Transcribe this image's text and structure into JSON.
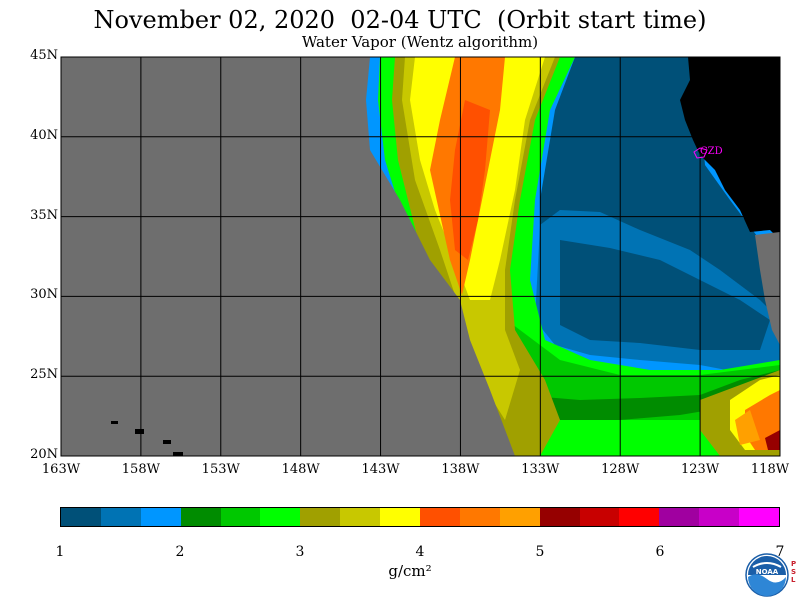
{
  "header": {
    "title": "November 02, 2020  02-04 UTC  (Orbit start time)",
    "subtitle": "Water Vapor (Wentz algorithm)"
  },
  "map": {
    "lat_labels": [
      "45N",
      "40N",
      "35N",
      "30N",
      "25N",
      "20N"
    ],
    "lon_labels": [
      "163W",
      "158W",
      "153W",
      "148W",
      "143W",
      "138W",
      "133W",
      "128W",
      "123W",
      "118W"
    ],
    "station_label": "CZD",
    "colors": {
      "no_data": "#6e6e6e",
      "land": "#000000",
      "station": "#ff00ff",
      "grid": "#000000"
    }
  },
  "colorbar": {
    "colors": [
      "#005078",
      "#0073b4",
      "#0096ff",
      "#008c00",
      "#00c800",
      "#00ff00",
      "#a0a000",
      "#c8c800",
      "#ffff00",
      "#ff5000",
      "#ff7800",
      "#ffa000",
      "#960000",
      "#c80000",
      "#ff0000",
      "#a000a0",
      "#c800c8",
      "#ff00ff"
    ],
    "labels": [
      "1",
      "2",
      "3",
      "4",
      "5",
      "6",
      "7"
    ],
    "units": "g/cm²"
  },
  "logo": {
    "org": "NOAA",
    "side_text": "PSL"
  }
}
